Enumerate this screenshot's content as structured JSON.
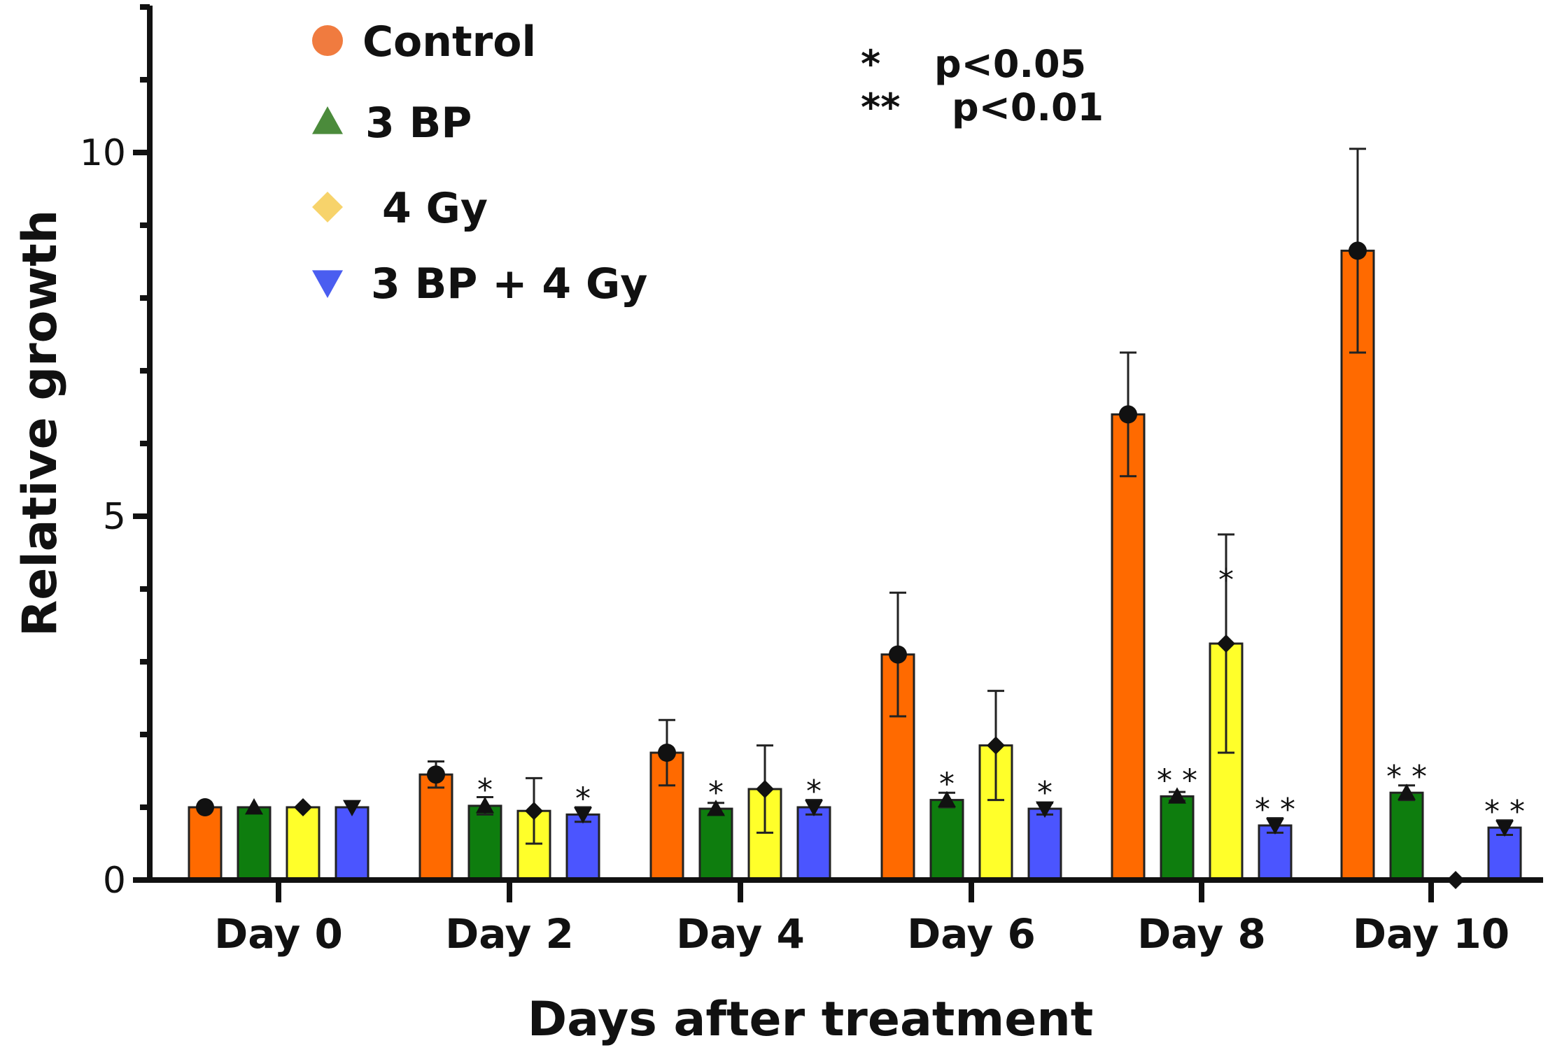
{
  "chart_data": {
    "type": "bar",
    "title": "",
    "xlabel": "Days after treatment",
    "ylabel": "Relative growth",
    "ylim": [
      0,
      12
    ],
    "yticks": [
      0,
      5,
      10
    ],
    "categories": [
      "Day 0",
      "Day 2",
      "Day 4",
      "Day 6",
      "Day 8",
      "Day 10"
    ],
    "series": [
      {
        "name": "Control",
        "marker": "circle",
        "legend_color": "#f07b3f",
        "bar_color": "#ff6a00",
        "values": [
          1.0,
          1.45,
          1.75,
          3.1,
          6.4,
          8.65
        ],
        "errors": [
          0.02,
          0.18,
          0.45,
          0.85,
          0.85,
          1.4
        ],
        "sig": [
          "",
          "",
          "",
          "",
          "",
          ""
        ]
      },
      {
        "name": "3 BP",
        "marker": "triangle-up",
        "legend_color": "#4b8b3b",
        "bar_color": "#0e7d0e",
        "values": [
          1.0,
          1.02,
          0.98,
          1.1,
          1.15,
          1.2
        ],
        "errors": [
          0.02,
          0.12,
          0.08,
          0.1,
          0.06,
          0.1
        ],
        "sig": [
          "",
          "*",
          "*",
          "*",
          "**",
          "**"
        ]
      },
      {
        "name": "4 Gy",
        "marker": "diamond",
        "legend_color": "#f7d36b",
        "bar_color": "#ffff2a",
        "values": [
          1.0,
          0.95,
          1.25,
          1.85,
          3.25,
          0.0
        ],
        "errors": [
          0.02,
          0.45,
          0.6,
          0.75,
          1.5,
          0.0
        ],
        "sig": [
          "",
          "",
          "",
          "",
          "*",
          ""
        ]
      },
      {
        "name": "3 BP + 4 Gy",
        "marker": "triangle-down",
        "legend_color": "#4a5df0",
        "bar_color": "#4b55ff",
        "values": [
          1.0,
          0.9,
          1.0,
          0.98,
          0.75,
          0.72
        ],
        "errors": [
          0.02,
          0.1,
          0.1,
          0.08,
          0.1,
          0.1
        ],
        "sig": [
          "",
          "*",
          "*",
          "*",
          "**",
          "**"
        ]
      }
    ],
    "significance_legend": [
      {
        "mark": "*",
        "text": "p<0.05"
      },
      {
        "mark": "**",
        "text": "p<0.01"
      }
    ]
  }
}
